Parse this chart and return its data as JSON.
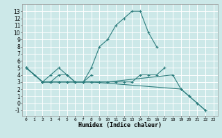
{
  "xlabel": "Humidex (Indice chaleur)",
  "bg_color": "#cce8e8",
  "grid_color": "#ffffff",
  "line_color": "#2d7d7d",
  "xlim": [
    -0.5,
    23.5
  ],
  "ylim": [
    -1.8,
    14.0
  ],
  "xticks": [
    0,
    1,
    2,
    3,
    4,
    5,
    6,
    7,
    8,
    9,
    10,
    11,
    12,
    13,
    14,
    15,
    16,
    17,
    18,
    19,
    20,
    21,
    22,
    23
  ],
  "yticks": [
    -1,
    0,
    1,
    2,
    3,
    4,
    5,
    6,
    7,
    8,
    9,
    10,
    11,
    12,
    13
  ],
  "series": [
    {
      "x": [
        0,
        1,
        2,
        3,
        4,
        5,
        6,
        7,
        8,
        9,
        10,
        11,
        12,
        13,
        14,
        15,
        16
      ],
      "y": [
        5,
        4,
        3,
        4,
        5,
        4,
        3,
        3,
        5,
        8,
        9,
        11,
        12,
        13,
        13,
        10,
        8
      ]
    },
    {
      "x": [
        0,
        2,
        3,
        4,
        5,
        6,
        7,
        8
      ],
      "y": [
        5,
        3,
        3,
        4,
        4,
        3,
        3,
        4
      ]
    },
    {
      "x": [
        0,
        2,
        3,
        4,
        5,
        6,
        7,
        8,
        9,
        10,
        11,
        12,
        13,
        14,
        15,
        16,
        17
      ],
      "y": [
        5,
        3,
        3,
        3,
        3,
        3,
        3,
        3,
        3,
        3,
        3,
        3,
        3,
        4,
        4,
        4,
        5
      ]
    },
    {
      "x": [
        0,
        2,
        3,
        4,
        5,
        6,
        7,
        8,
        9,
        10,
        18,
        19,
        20,
        21,
        22
      ],
      "y": [
        5,
        3,
        3,
        3,
        3,
        3,
        3,
        3,
        3,
        3,
        4,
        2,
        1,
        0,
        -1
      ]
    },
    {
      "x": [
        0,
        2,
        3,
        4,
        5,
        6,
        7,
        8,
        19,
        20,
        21,
        22
      ],
      "y": [
        5,
        3,
        3,
        3,
        3,
        3,
        3,
        3,
        2,
        1,
        0,
        -1
      ]
    }
  ]
}
